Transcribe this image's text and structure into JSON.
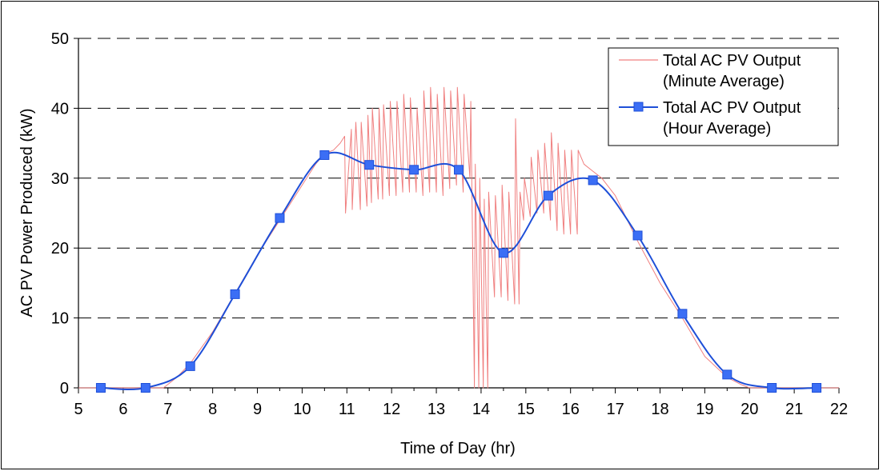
{
  "chart_data": {
    "type": "line",
    "xlabel": "Time of Day (hr)",
    "ylabel": "AC PV Power Produced (kW)",
    "xlim": [
      5,
      22
    ],
    "ylim": [
      0,
      50
    ],
    "xticks": [
      "5",
      "6",
      "7",
      "8",
      "9",
      "10",
      "11",
      "12",
      "13",
      "14",
      "15",
      "16",
      "17",
      "18",
      "19",
      "20",
      "21",
      "22"
    ],
    "yticks": [
      "0",
      "10",
      "20",
      "30",
      "40",
      "50"
    ],
    "grid": "horizontal dashed",
    "legend_position": "top-right",
    "series": [
      {
        "name": "Total AC PV Output (Minute Average)",
        "legend_lines": [
          "Total AC PV Output",
          "(Minute Average)"
        ],
        "color": "#f08080",
        "style": "thin line, no markers",
        "x": [
          5.0,
          6.9,
          7.0,
          7.2,
          7.5,
          8.0,
          8.5,
          9.0,
          9.5,
          10.0,
          10.3,
          10.5,
          10.7,
          10.85,
          10.95,
          10.97,
          11.1,
          11.12,
          11.2,
          11.3,
          11.32,
          11.45,
          11.47,
          11.55,
          11.57,
          11.7,
          11.72,
          11.8,
          11.82,
          11.95,
          11.97,
          12.1,
          12.12,
          12.25,
          12.27,
          12.4,
          12.42,
          12.55,
          12.57,
          12.7,
          12.72,
          12.85,
          12.87,
          13.0,
          13.02,
          13.15,
          13.17,
          13.3,
          13.32,
          13.45,
          13.47,
          13.6,
          13.62,
          13.75,
          13.77,
          13.85,
          13.87,
          13.95,
          13.97,
          14.05,
          14.07,
          14.15,
          14.17,
          14.3,
          14.32,
          14.45,
          14.47,
          14.6,
          14.62,
          14.75,
          14.77,
          14.85,
          14.87,
          14.95,
          14.97,
          15.1,
          15.12,
          15.25,
          15.27,
          15.4,
          15.42,
          15.55,
          15.57,
          15.7,
          15.72,
          15.85,
          15.87,
          16.0,
          16.02,
          16.15,
          16.17,
          16.3,
          16.5,
          16.7,
          17.0,
          17.5,
          18.0,
          18.5,
          19.0,
          19.5,
          19.8,
          20.0,
          22.0
        ],
        "y": [
          0,
          0,
          0.5,
          1.5,
          3.5,
          8.0,
          13.5,
          19.0,
          24.0,
          29.0,
          32.0,
          33.5,
          34.0,
          35.0,
          36.0,
          25.0,
          37.0,
          25.5,
          38.0,
          25.5,
          38.0,
          26.0,
          39.0,
          26.5,
          40.0,
          27.0,
          40.0,
          27.0,
          40.5,
          27.5,
          41.0,
          27.5,
          41.0,
          28.0,
          42.0,
          28.0,
          41.5,
          28.0,
          40.0,
          27.5,
          42.5,
          28.0,
          43.0,
          28.0,
          42.0,
          27.5,
          43.0,
          28.5,
          42.5,
          29.0,
          43.0,
          28.0,
          42.0,
          30.0,
          41.0,
          0,
          32.0,
          0,
          30.0,
          0,
          27.0,
          0,
          28.0,
          13.0,
          27.5,
          13.0,
          29.0,
          12.5,
          28.0,
          12.0,
          38.5,
          12.0,
          28.0,
          24.0,
          30.0,
          24.5,
          33.0,
          25.0,
          34.0,
          25.0,
          35.0,
          24.0,
          36.5,
          22.5,
          35.0,
          22.0,
          34.0,
          22.0,
          34.0,
          22.0,
          34.0,
          32.0,
          31.0,
          30.0,
          27.5,
          21.0,
          15.0,
          10.0,
          4.5,
          1.5,
          0.5,
          0,
          0
        ]
      },
      {
        "name": "Total AC PV Output (Hour Average)",
        "legend_lines": [
          "Total AC PV Output",
          "(Hour Average)"
        ],
        "color": "#1e4fd8",
        "marker_color": "#3b6ef5",
        "style": "smoothed line with square markers",
        "x": [
          5.5,
          6.5,
          7.5,
          8.5,
          9.5,
          10.5,
          11.5,
          12.5,
          13.5,
          14.5,
          15.5,
          16.5,
          17.5,
          18.5,
          19.5,
          20.5,
          21.5
        ],
        "y": [
          0,
          0,
          3.1,
          13.4,
          24.3,
          33.3,
          31.9,
          31.2,
          31.2,
          19.3,
          27.5,
          29.7,
          21.8,
          10.6,
          1.9,
          0,
          0
        ]
      }
    ]
  }
}
